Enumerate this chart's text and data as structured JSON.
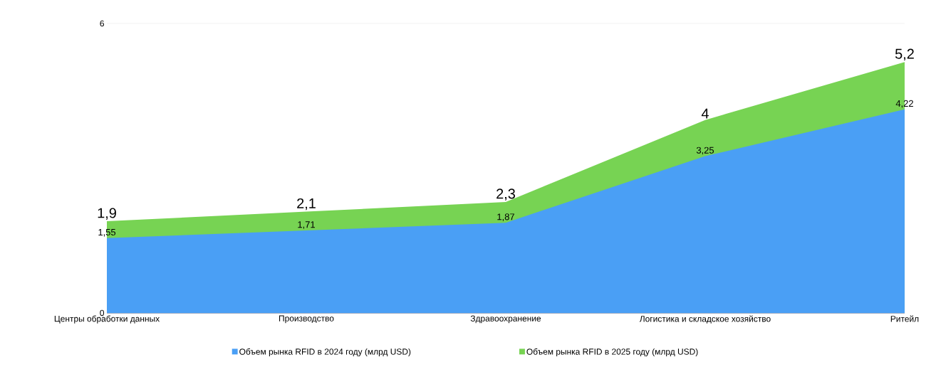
{
  "chart_data": {
    "type": "area",
    "categories": [
      "Центры обработки данных",
      "Производство",
      "Здравоохранение",
      "Логистика и складское хозяйство",
      "Ритейл"
    ],
    "series": [
      {
        "name": "Объем рынка RFID в 2024 году (млрд USD)",
        "color": "#4a9ff5",
        "values": [
          1.55,
          1.71,
          1.87,
          3.25,
          4.22
        ],
        "value_labels": [
          "1,55",
          "1,71",
          "1,87",
          "3,25",
          "4,22"
        ]
      },
      {
        "name": "Объем рынка RFID в 2025 году (млрд USD)",
        "color": "#77d353",
        "values": [
          1.9,
          2.1,
          2.3,
          4,
          5.2
        ],
        "value_labels": [
          "1,9",
          "2,1",
          "2,3",
          "4",
          "5,2"
        ]
      }
    ],
    "ylim": [
      0,
      6
    ],
    "yticks": [
      0,
      6
    ],
    "grid": "y",
    "legend": "bottom"
  }
}
